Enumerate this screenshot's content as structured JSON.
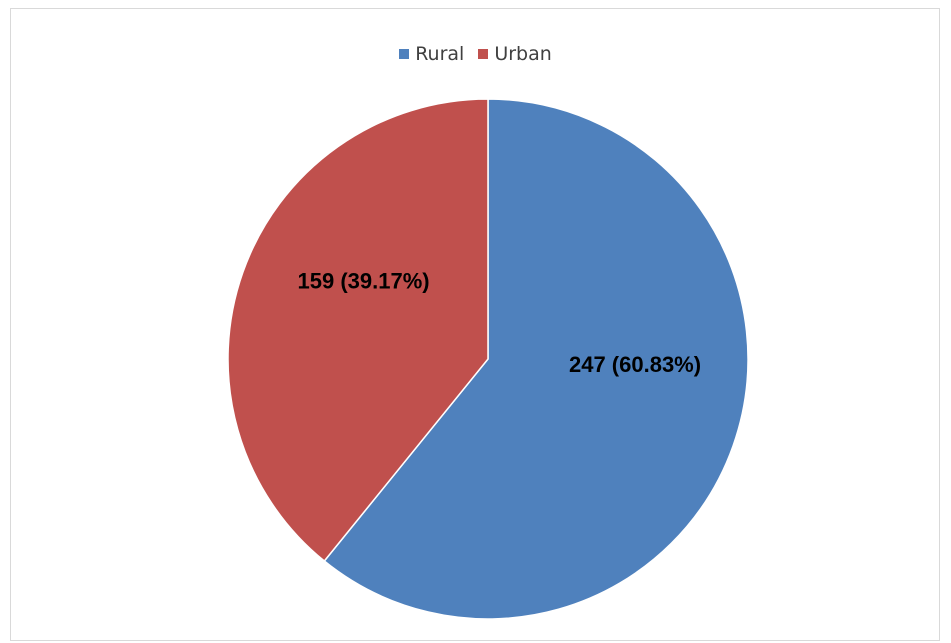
{
  "chart_data": {
    "type": "pie",
    "categories": [
      "Rural",
      "Urban"
    ],
    "values": [
      247,
      159
    ],
    "percentages": [
      60.83,
      39.17
    ],
    "data_labels": [
      "247 (60.83%)",
      "159 (39.17%)"
    ],
    "colors": [
      "#4f81bd",
      "#c0504d"
    ],
    "start_angle_deg": 0,
    "direction": "clockwise",
    "legend_position": "top"
  }
}
